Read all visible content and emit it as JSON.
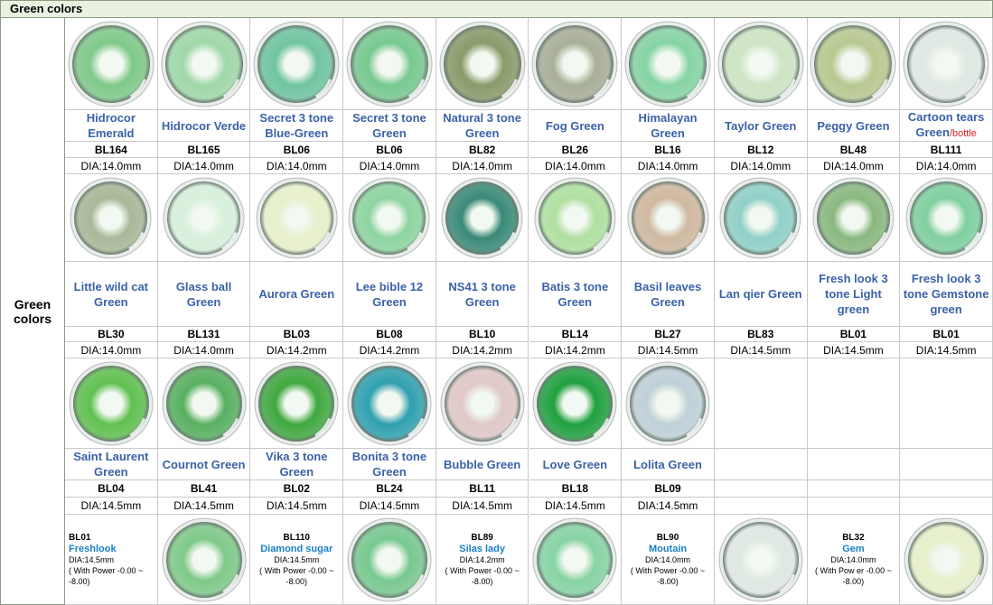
{
  "header": {
    "title": "Green colors"
  },
  "side_label": "Green colors",
  "product_rows": [
    [
      {
        "name": "Hidrocor Emerald",
        "code": "BL164",
        "dia": "DIA:14.0mm"
      },
      {
        "name": "Hidrocor Verde",
        "code": "BL165",
        "dia": "DIA:14.0mm"
      },
      {
        "name": "Secret 3 tone Blue-Green",
        "code": "BL06",
        "dia": "DIA:14.0mm"
      },
      {
        "name": "Secret 3 tone Green",
        "code": "BL06",
        "dia": "DIA:14.0mm"
      },
      {
        "name": "Natural 3 tone Green",
        "code": "BL82",
        "dia": "DIA:14.0mm"
      },
      {
        "name": "Fog Green",
        "code": "BL26",
        "dia": "DIA:14.0mm"
      },
      {
        "name": "Himalayan Green",
        "code": "BL16",
        "dia": "DIA:14.0mm"
      },
      {
        "name": "Taylor Green",
        "code": "BL12",
        "dia": "DIA:14.0mm"
      },
      {
        "name": "Peggy Green",
        "code": "BL48",
        "dia": "DIA:14.0mm"
      },
      {
        "name": "Cartoon tears Green",
        "note": "/bottle",
        "code": "BL111",
        "dia": "DIA:14.0mm"
      }
    ],
    [
      {
        "name": "Little wild cat Green",
        "code": "BL30",
        "dia": "DIA:14.0mm"
      },
      {
        "name": "Glass ball Green",
        "code": "BL131",
        "dia": "DIA:14.0mm"
      },
      {
        "name": "Aurora  Green",
        "code": "BL03",
        "dia": "DIA:14.2mm"
      },
      {
        "name": "Lee bible 12 Green",
        "code": "BL08",
        "dia": "DIA:14.2mm"
      },
      {
        "name": "NS41 3 tone Green",
        "code": "BL10",
        "dia": "DIA:14.2mm"
      },
      {
        "name": "Batis 3 tone Green",
        "code": "BL14",
        "dia": "DIA:14.2mm"
      },
      {
        "name": "Basil leaves Green",
        "code": "BL27",
        "dia": "DIA:14.5mm"
      },
      {
        "name": "Lan qier Green",
        "code": "BL83",
        "dia": "DIA:14.5mm"
      },
      {
        "name": "Fresh look 3 tone Light green",
        "code": "BL01",
        "dia": "DIA:14.5mm"
      },
      {
        "name": "Fresh look 3 tone Gemstone green",
        "code": "BL01",
        "dia": "DIA:14.5mm"
      }
    ],
    [
      {
        "name": "Saint Laurent Green",
        "code": "BL04",
        "dia": "DIA:14.5mm"
      },
      {
        "name": "Cournot Green",
        "code": "BL41",
        "dia": "DIA:14.5mm"
      },
      {
        "name": "Vika 3 tone Green",
        "code": "BL02",
        "dia": "DIA:14.5mm"
      },
      {
        "name": "Bonita  3 tone Green",
        "code": "BL24",
        "dia": "DIA:14.5mm"
      },
      {
        "name": "Bubble Green",
        "code": "BL11",
        "dia": "DIA:14.5mm"
      },
      {
        "name": "Love  Green",
        "code": "BL18",
        "dia": "DIA:14.5mm"
      },
      {
        "name": "Lolita Green",
        "code": "BL09",
        "dia": "DIA:14.5mm"
      }
    ]
  ],
  "featured": [
    {
      "code": "BL01",
      "name": "Freshlook",
      "dia": "DIA:14.5mm",
      "power": "( With Power -0.00 ~ -8.00)"
    },
    {
      "code": "BL110",
      "name": "Diamond sugar",
      "dia": "DIA:14.5mm",
      "power": "( With Power -0.00 ~ -8.00)"
    },
    {
      "code": "BL89",
      "name": "Silas lady",
      "dia": "DIA:14.2mm",
      "power": "( With Power -0.00 ~ -8.00)"
    },
    {
      "code": "BL90",
      "name": "Moutain",
      "dia": "DIA:14.0mm",
      "power": "( With Power -0.00 ~ -8.00)"
    },
    {
      "code": "BL32",
      "name": "Gem",
      "dia": "DIA:14.0mm",
      "power": "( With Pow er -0.00 ~ -8.00)"
    }
  ]
}
